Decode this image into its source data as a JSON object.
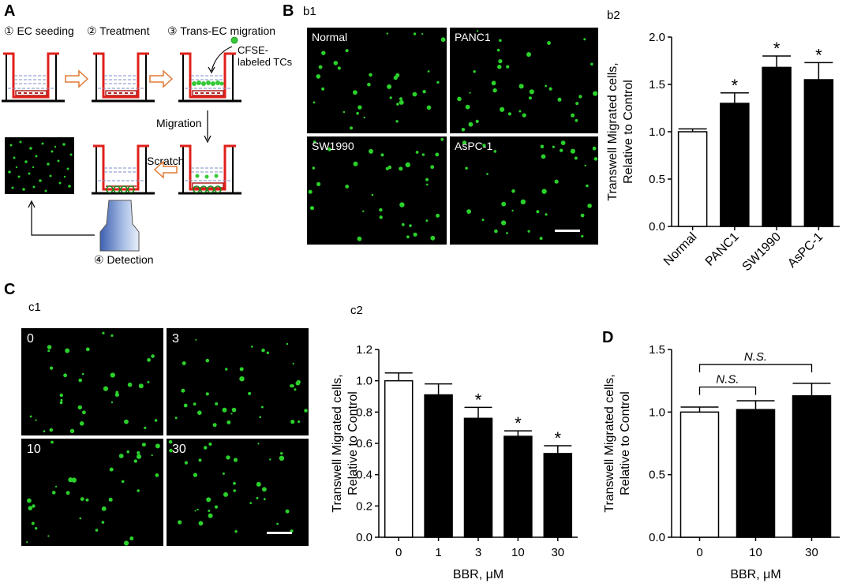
{
  "panels": {
    "A": {
      "letter": "A",
      "steps": {
        "s1": "① EC seeding",
        "s2": "② Treatment",
        "s3": "③ Trans-EC migration",
        "s4": "④ Detection"
      },
      "cfse_label_line1": "CFSE-",
      "cfse_label_line2": "labeled TCs",
      "migration_label": "Migration",
      "scratch_label": "Scratch"
    },
    "B": {
      "letter": "B",
      "b1": "b1",
      "b2": "b2",
      "micro_labels": [
        "Normal",
        "PANC1",
        "SW1990",
        "AsPC-1"
      ]
    },
    "C": {
      "letter": "C",
      "c1": "c1",
      "c2": "c2",
      "micro_labels": [
        "0",
        "3",
        "10",
        "30"
      ]
    },
    "D": {
      "letter": "D"
    }
  },
  "colors": {
    "filled_bar": "#000000",
    "open_bar": "#ffffff",
    "cells": "#2bd12b",
    "trap_red": "#e0201b",
    "arrow_orange": "#e07a35"
  },
  "chart_data": [
    {
      "id": "b2",
      "type": "bar",
      "categories": [
        "Normal",
        "PANC1",
        "SW1990",
        "AsPC-1"
      ],
      "values": [
        1.0,
        1.3,
        1.68,
        1.55
      ],
      "errors": [
        0.03,
        0.11,
        0.12,
        0.18
      ],
      "significance": [
        "",
        "*",
        "*",
        "*"
      ],
      "fill": [
        "open",
        "filled",
        "filled",
        "filled"
      ],
      "xlabel": "",
      "ylabel_line1": "Transwell Migrated cells,",
      "ylabel_line2": "Relative to Control",
      "ylim": [
        0,
        2.0
      ],
      "yticks": [
        0.0,
        0.5,
        1.0,
        1.5,
        2.0
      ],
      "ytick_labels": [
        "0.0",
        "0.5",
        "1.0",
        "1.5",
        "2.0"
      ],
      "rotated_xticks": true
    },
    {
      "id": "c2",
      "type": "bar",
      "categories": [
        "0",
        "1",
        "3",
        "10",
        "30"
      ],
      "values": [
        1.0,
        0.91,
        0.76,
        0.645,
        0.535
      ],
      "errors": [
        0.05,
        0.07,
        0.07,
        0.035,
        0.05
      ],
      "significance": [
        "",
        "",
        "*",
        "*",
        "*"
      ],
      "fill": [
        "open",
        "filled",
        "filled",
        "filled",
        "filled"
      ],
      "xlabel": "BBR,  μM",
      "ylabel_line1": "Transwell Migrated cells,",
      "ylabel_line2": "Relative to Control",
      "ylim": [
        0,
        1.2
      ],
      "yticks": [
        0.0,
        0.2,
        0.4,
        0.6,
        0.8,
        1.0,
        1.2
      ],
      "ytick_labels": [
        "0.0",
        "0.2",
        "0.4",
        "0.6",
        "0.8",
        "1.0",
        "1.2"
      ],
      "rotated_xticks": false
    },
    {
      "id": "d",
      "type": "bar",
      "categories": [
        "0",
        "10",
        "30"
      ],
      "values": [
        1.0,
        1.02,
        1.13
      ],
      "errors": [
        0.04,
        0.07,
        0.1
      ],
      "significance": [
        "",
        "",
        ""
      ],
      "fill": [
        "open",
        "filled",
        "filled"
      ],
      "xlabel": "BBR,  μM",
      "ylabel_line1": "Transwell Migrated cells,",
      "ylabel_line2": "Relative to Control",
      "ylim": [
        0,
        1.5
      ],
      "yticks": [
        0.0,
        0.5,
        1.0,
        1.5
      ],
      "ytick_labels": [
        "0.0",
        "0.5",
        "1.0",
        "1.5"
      ],
      "rotated_xticks": false,
      "brackets": [
        {
          "from": 0,
          "to": 1,
          "label": "N.S.",
          "level": 1.2
        },
        {
          "from": 0,
          "to": 2,
          "label": "N.S.",
          "level": 1.38
        }
      ]
    }
  ]
}
